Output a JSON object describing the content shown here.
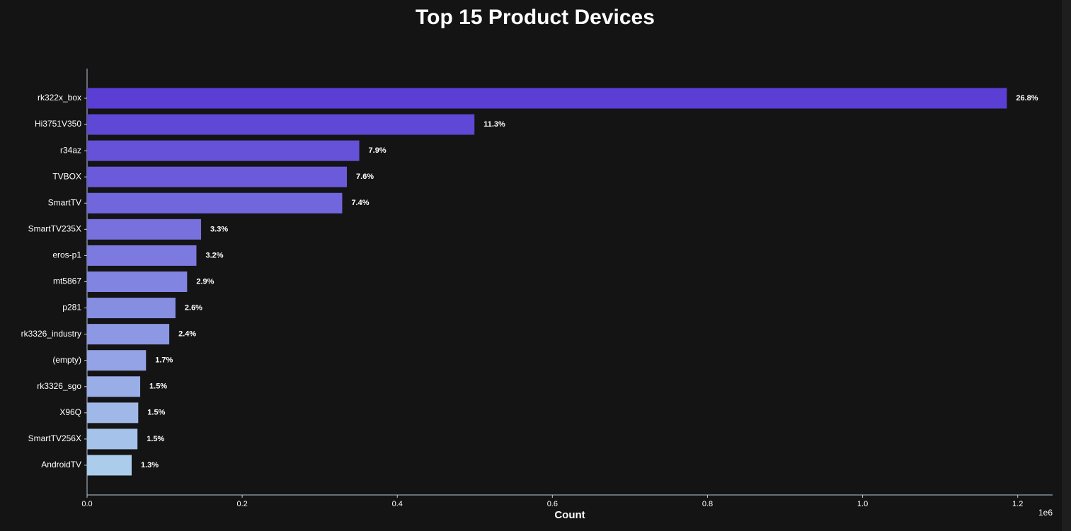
{
  "chart_data": {
    "type": "barh",
    "title": "Top 15 Product Devices",
    "xlabel": "Count",
    "x_offset_label": "1e6",
    "categories": [
      "rk322x_box",
      "Hi3751V350",
      "r34az",
      "TVBOX",
      "SmartTV",
      "SmartTV235X",
      "eros-p1",
      "mt5867",
      "p281",
      "rk3326_industry",
      "(empty)",
      "rk3326_sgo",
      "X96Q",
      "SmartTV256X",
      "AndroidTV"
    ],
    "values": [
      1186000,
      499500,
      351000,
      335000,
      329000,
      147000,
      141000,
      129000,
      114000,
      106000,
      76000,
      68500,
      66000,
      65000,
      57500
    ],
    "percent_labels": [
      "26.8%",
      "11.3%",
      "7.9%",
      "7.6%",
      "7.4%",
      "3.3%",
      "3.2%",
      "2.9%",
      "2.6%",
      "2.4%",
      "1.7%",
      "1.5%",
      "1.5%",
      "1.5%",
      "1.3%"
    ],
    "colors": [
      "#5b3fd4",
      "#5f48d6",
      "#6552d8",
      "#6b5bda",
      "#7166dc",
      "#7770dd",
      "#7c79df",
      "#8184e0",
      "#868ee2",
      "#8c98e3",
      "#93a3e5",
      "#99aee7",
      "#9fb8e8",
      "#a5c3ea",
      "#abcdeb"
    ],
    "xlim": [
      0,
      1245000
    ],
    "xticks": [
      {
        "value": 0,
        "label": "0.0"
      },
      {
        "value": 200000,
        "label": "0.2"
      },
      {
        "value": 400000,
        "label": "0.4"
      },
      {
        "value": 600000,
        "label": "0.6"
      },
      {
        "value": 800000,
        "label": "0.8"
      },
      {
        "value": 1000000,
        "label": "1.0"
      },
      {
        "value": 1200000,
        "label": "1.2"
      }
    ],
    "grid": false
  }
}
